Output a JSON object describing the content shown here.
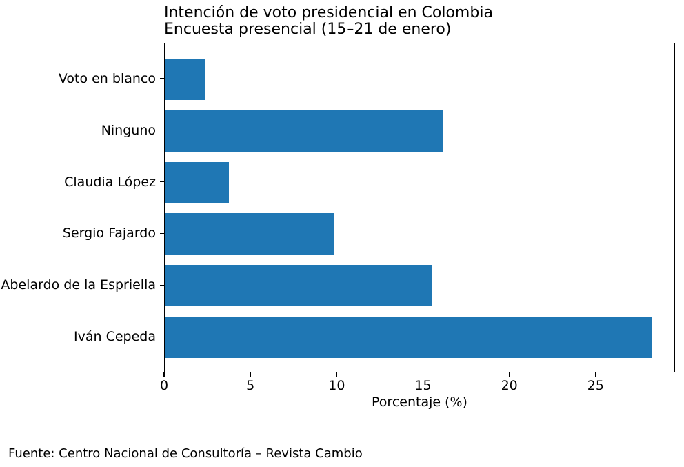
{
  "chart_data": {
    "type": "bar",
    "orientation": "horizontal",
    "title_line1": "Intención de voto presidencial en Colombia",
    "title_line2": "Encuesta presencial (15–21 de enero)",
    "xlabel": "Porcentaje (%)",
    "categories": [
      "Voto en blanco",
      "Ninguno",
      "Claudia López",
      "Sergio Fajardo",
      "Abelardo de la Espriella",
      "Iván Cepeda"
    ],
    "values": [
      2.3,
      16.1,
      3.7,
      9.8,
      15.5,
      28.2
    ],
    "xticks": [
      0,
      5,
      10,
      15,
      20,
      25
    ],
    "xlim": [
      0,
      29.6
    ],
    "bar_color": "#1f77b4",
    "grid": false,
    "legend": "none"
  },
  "footer": {
    "source": "Fuente: Centro Nacional de Consultoría – Revista Cambio"
  }
}
